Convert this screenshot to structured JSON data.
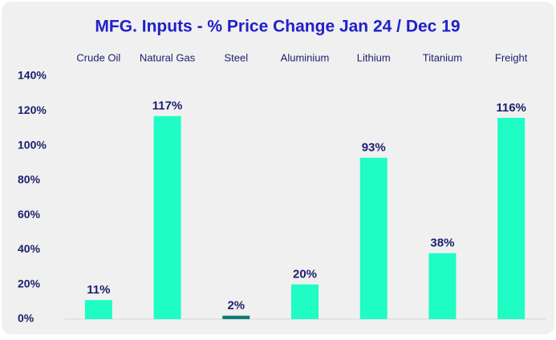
{
  "chart_data": {
    "type": "bar",
    "title": "MFG. Inputs - % Price Change Jan 24 / Dec 19",
    "categories": [
      "Crude Oil",
      "Natural Gas",
      "Steel",
      "Aluminium",
      "Lithium",
      "Titanium",
      "Freight"
    ],
    "values": [
      11,
      117,
      2,
      20,
      93,
      38,
      116
    ],
    "value_labels": [
      "11%",
      "117%",
      "2%",
      "20%",
      "93%",
      "38%",
      "116%"
    ],
    "colors": [
      "#1ffcc4",
      "#1ffcc4",
      "#0e7c78",
      "#1ffcc4",
      "#1ffcc4",
      "#1ffcc4",
      "#1ffcc4"
    ],
    "ylim": [
      0,
      140
    ],
    "yticks": [
      {
        "value": 0,
        "label": "0%"
      },
      {
        "value": 20,
        "label": "20%"
      },
      {
        "value": 40,
        "label": "40%"
      },
      {
        "value": 60,
        "label": "60%"
      },
      {
        "value": 80,
        "label": "80%"
      },
      {
        "value": 100,
        "label": "100%"
      },
      {
        "value": 120,
        "label": "120%"
      },
      {
        "value": 140,
        "label": "140%"
      }
    ],
    "grid": false
  }
}
